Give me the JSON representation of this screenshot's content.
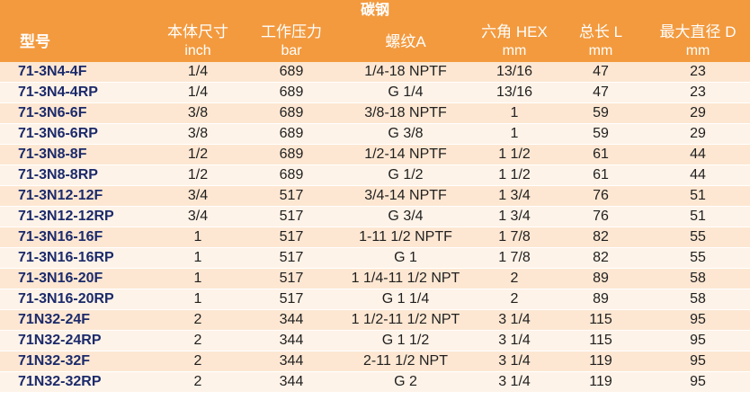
{
  "table": {
    "material": "碳钢",
    "headers": {
      "model": "型号",
      "body_size": "本体尺寸",
      "pressure": "工作压力",
      "thread": "螺纹A",
      "hex": "六角 HEX",
      "length": "总长 L",
      "diameter": "最大直径 D"
    },
    "units": {
      "body_size": "inch",
      "pressure": "bar",
      "hex": "mm",
      "length": "mm",
      "diameter": "mm"
    },
    "rows": [
      {
        "model": "71-3N4-4F",
        "size": "1/4",
        "pressure": "689",
        "thread": "1/4-18 NPTF",
        "hex": "13/16",
        "length": "47",
        "diameter": "23"
      },
      {
        "model": "71-3N4-4RP",
        "size": "1/4",
        "pressure": "689",
        "thread": "G 1/4",
        "hex": "13/16",
        "length": "47",
        "diameter": "23"
      },
      {
        "model": "71-3N6-6F",
        "size": "3/8",
        "pressure": "689",
        "thread": "3/8-18 NPTF",
        "hex": "1",
        "length": "59",
        "diameter": "29"
      },
      {
        "model": "71-3N6-6RP",
        "size": "3/8",
        "pressure": "689",
        "thread": "G 3/8",
        "hex": "1",
        "length": "59",
        "diameter": "29"
      },
      {
        "model": "71-3N8-8F",
        "size": "1/2",
        "pressure": "689",
        "thread": "1/2-14 NPTF",
        "hex": "1 1/2",
        "length": "61",
        "diameter": "44"
      },
      {
        "model": "71-3N8-8RP",
        "size": "1/2",
        "pressure": "689",
        "thread": "G 1/2",
        "hex": "1 1/2",
        "length": "61",
        "diameter": "44"
      },
      {
        "model": "71-3N12-12F",
        "size": "3/4",
        "pressure": "517",
        "thread": "3/4-14 NPTF",
        "hex": "1 3/4",
        "length": "76",
        "diameter": "51"
      },
      {
        "model": "71-3N12-12RP",
        "size": "3/4",
        "pressure": "517",
        "thread": "G 3/4",
        "hex": "1 3/4",
        "length": "76",
        "diameter": "51"
      },
      {
        "model": "71-3N16-16F",
        "size": "1",
        "pressure": "517",
        "thread": "1-11 1/2 NPTF",
        "hex": "1 7/8",
        "length": "82",
        "diameter": "55"
      },
      {
        "model": "71-3N16-16RP",
        "size": "1",
        "pressure": "517",
        "thread": "G 1",
        "hex": "1 7/8",
        "length": "82",
        "diameter": "55"
      },
      {
        "model": "71-3N16-20F",
        "size": "1",
        "pressure": "517",
        "thread": "1 1/4-11 1/2 NPT",
        "hex": "2",
        "length": "89",
        "diameter": "58"
      },
      {
        "model": "71-3N16-20RP",
        "size": "1",
        "pressure": "517",
        "thread": "G 1 1/4",
        "hex": "2",
        "length": "89",
        "diameter": "58"
      },
      {
        "model": "71N32-24F",
        "size": "2",
        "pressure": "344",
        "thread": "1 1/2-11 1/2 NPT",
        "hex": "3 1/4",
        "length": "115",
        "diameter": "95"
      },
      {
        "model": "71N32-24RP",
        "size": "2",
        "pressure": "344",
        "thread": "G 1 1/2",
        "hex": "3 1/4",
        "length": "115",
        "diameter": "95"
      },
      {
        "model": "71N32-32F",
        "size": "2",
        "pressure": "344",
        "thread": "2-11 1/2 NPT",
        "hex": "3 1/4",
        "length": "119",
        "diameter": "95"
      },
      {
        "model": "71N32-32RP",
        "size": "2",
        "pressure": "344",
        "thread": "G 2",
        "hex": "3 1/4",
        "length": "119",
        "diameter": "95"
      }
    ]
  }
}
